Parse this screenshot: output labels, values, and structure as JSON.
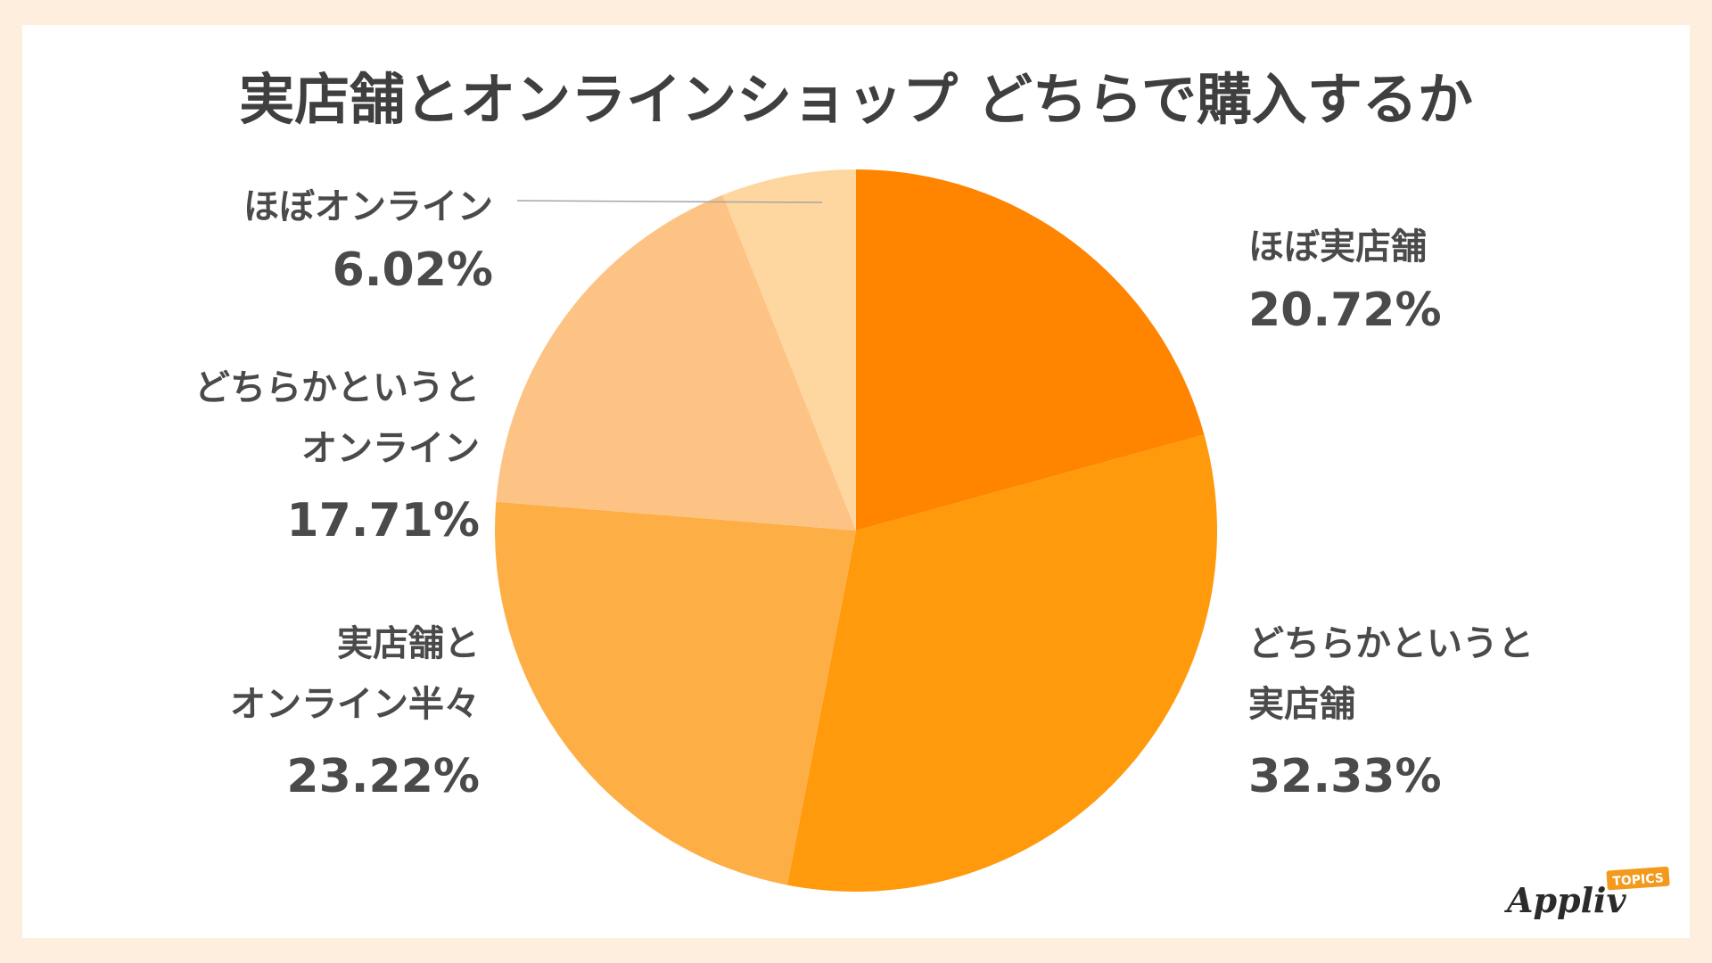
{
  "chart_data": {
    "type": "pie",
    "title": "実店舗とオンラインショップ どちらで購入するか",
    "start_angle_deg": 0,
    "direction": "clockwise",
    "slices": [
      {
        "label_lines": [
          "ほぼ実店舗"
        ],
        "value": 20.72,
        "value_label": "20.72%",
        "color": "#ff8400"
      },
      {
        "label_lines": [
          "どちらかというと",
          "実店舗"
        ],
        "value": 32.33,
        "value_label": "32.33%",
        "color": "#ff9a0c"
      },
      {
        "label_lines": [
          "実店舗と",
          "オンライン半々"
        ],
        "value": 23.22,
        "value_label": "23.22%",
        "color": "#fdae44"
      },
      {
        "label_lines": [
          "どちらかというと",
          "オンライン"
        ],
        "value": 17.71,
        "value_label": "17.71%",
        "color": "#fdc385"
      },
      {
        "label_lines": [
          "ほぼオンライン"
        ],
        "value": 6.02,
        "value_label": "6.02%",
        "color": "#fed6a0"
      }
    ]
  },
  "logo": {
    "text": "Appliv",
    "badge": "TOPICS"
  }
}
